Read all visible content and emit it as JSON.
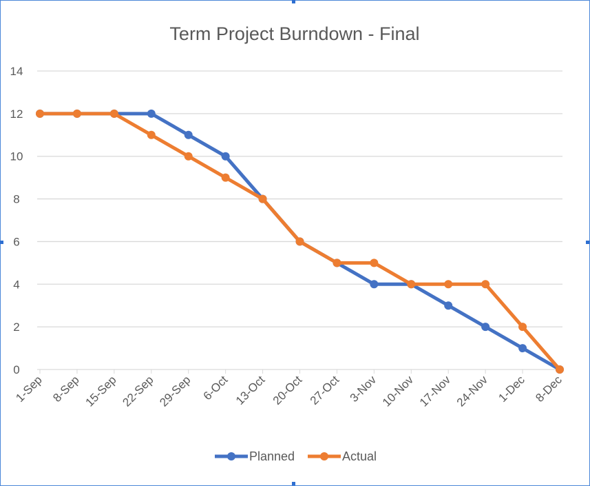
{
  "chart_data": {
    "type": "line",
    "title": "Term Project Burndown - Final",
    "xlabel": "",
    "ylabel": "",
    "categories": [
      "1-Sep",
      "8-Sep",
      "15-Sep",
      "22-Sep",
      "29-Sep",
      "6-Oct",
      "13-Oct",
      "20-Oct",
      "27-Oct",
      "3-Nov",
      "10-Nov",
      "17-Nov",
      "24-Nov",
      "1-Dec",
      "8-Dec"
    ],
    "ylim": [
      0,
      14
    ],
    "yticks": [
      0,
      2,
      4,
      6,
      8,
      10,
      12,
      14
    ],
    "grid": true,
    "legend_position": "bottom",
    "series": [
      {
        "name": "Planned",
        "color": "#4472c4",
        "values": [
          12,
          12,
          12,
          12,
          11,
          10,
          8,
          6,
          5,
          4,
          4,
          3,
          2,
          1,
          0
        ]
      },
      {
        "name": "Actual",
        "color": "#ed7d31",
        "values": [
          12,
          12,
          12,
          11,
          10,
          9,
          8,
          6,
          5,
          5,
          4,
          4,
          4,
          2,
          0
        ]
      }
    ]
  }
}
